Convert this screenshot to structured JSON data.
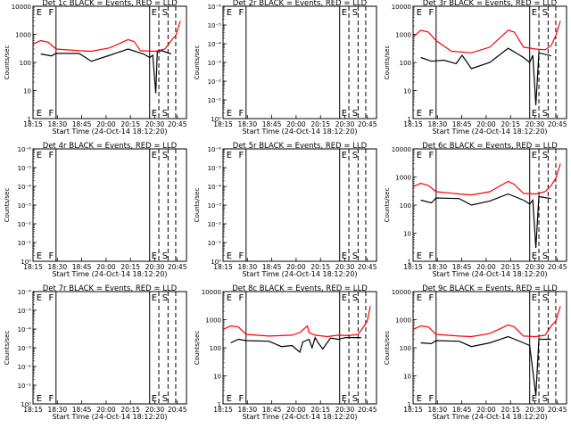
{
  "chart_data": [
    {
      "type": "line",
      "title": "Det 1c BLACK = Events, RED = LLD",
      "xlabel": "Start Time (24-Oct-14 18:12:20)",
      "ylabel": "Counts/sec",
      "x_ticks": [
        "18:15",
        "18:30",
        "18:45",
        "20:00",
        "20:15",
        "20:30",
        "20:45"
      ],
      "y_scale": "log",
      "y_ticks": [
        "1",
        "10",
        "100",
        "1000",
        "10000"
      ],
      "ylim": [
        1,
        10000
      ],
      "markers": [
        "E",
        "F",
        "E",
        "S"
      ],
      "series": [
        {
          "name": "Events",
          "color": "#000000",
          "points": [
            [
              0.05,
              200
            ],
            [
              0.12,
              170
            ],
            [
              0.15,
              210
            ],
            [
              0.3,
              210
            ],
            [
              0.38,
              110
            ],
            [
              0.5,
              180
            ],
            [
              0.62,
              300
            ],
            [
              0.72,
              200
            ],
            [
              0.76,
              150
            ],
            [
              0.78,
              180
            ],
            [
              0.8,
              8
            ],
            [
              0.81,
              250
            ],
            [
              0.84,
              260
            ],
            [
              0.9,
              200
            ]
          ]
        },
        {
          "name": "LLD",
          "color": "#ff0000",
          "points": [
            [
              0,
              450
            ],
            [
              0.05,
              600
            ],
            [
              0.1,
              520
            ],
            [
              0.15,
              300
            ],
            [
              0.3,
              260
            ],
            [
              0.38,
              250
            ],
            [
              0.5,
              330
            ],
            [
              0.62,
              650
            ],
            [
              0.66,
              550
            ],
            [
              0.7,
              260
            ],
            [
              0.8,
              250
            ],
            [
              0.86,
              300
            ],
            [
              0.9,
              600
            ],
            [
              0.93,
              900
            ],
            [
              0.96,
              3000
            ]
          ]
        }
      ]
    },
    {
      "type": "line",
      "title": "Det 2r BLACK = Events, RED = LLD",
      "xlabel": "Start Time (24-Oct-14 18:12:20)",
      "ylabel": "Counts/sec",
      "x_ticks": [
        "18:15",
        "18:30",
        "18:45",
        "20:00",
        "20:15",
        "20:30",
        "20:45"
      ],
      "y_scale": "log",
      "y_ticks": [
        "10⁰",
        "10⁻¹",
        "10⁻²",
        "10⁻³",
        "10⁻⁴",
        "10⁻⁵",
        "10⁻⁶"
      ],
      "markers": [
        "E",
        "F",
        "E",
        "S"
      ],
      "series": []
    },
    {
      "type": "line",
      "title": "Det 3r BLACK = Events, RED = LLD",
      "xlabel": "Start Time (24-Oct-14 18:12:20)",
      "ylabel": "Counts/sec",
      "x_ticks": [
        "18:15",
        "18:30",
        "18:45",
        "20:00",
        "20:15",
        "20:30",
        "20:45"
      ],
      "y_scale": "log",
      "y_ticks": [
        "1",
        "10",
        "100",
        "1000",
        "10000"
      ],
      "ylim": [
        1,
        10000
      ],
      "markers": [
        "E",
        "F",
        "E",
        "S"
      ],
      "series": [
        {
          "name": "Events",
          "color": "#000000",
          "points": [
            [
              0.05,
              150
            ],
            [
              0.12,
              110
            ],
            [
              0.2,
              120
            ],
            [
              0.28,
              90
            ],
            [
              0.32,
              180
            ],
            [
              0.38,
              60
            ],
            [
              0.5,
              100
            ],
            [
              0.62,
              320
            ],
            [
              0.72,
              150
            ],
            [
              0.76,
              100
            ],
            [
              0.78,
              180
            ],
            [
              0.8,
              3
            ],
            [
              0.82,
              220
            ],
            [
              0.9,
              170
            ]
          ]
        },
        {
          "name": "LLD",
          "color": "#ff0000",
          "points": [
            [
              0,
              800
            ],
            [
              0.05,
              1400
            ],
            [
              0.1,
              1200
            ],
            [
              0.15,
              600
            ],
            [
              0.25,
              250
            ],
            [
              0.38,
              220
            ],
            [
              0.5,
              350
            ],
            [
              0.62,
              1400
            ],
            [
              0.66,
              1200
            ],
            [
              0.72,
              350
            ],
            [
              0.8,
              300
            ],
            [
              0.86,
              280
            ],
            [
              0.9,
              400
            ],
            [
              0.93,
              900
            ],
            [
              0.96,
              3000
            ]
          ]
        }
      ]
    },
    {
      "type": "line",
      "title": "Det 4r BLACK = Events, RED = LLD",
      "xlabel": "Start Time (24-Oct-14 18:12:20)",
      "ylabel": "Counts/sec",
      "x_ticks": [
        "18:15",
        "18:30",
        "18:45",
        "20:00",
        "20:15",
        "20:30",
        "20:45"
      ],
      "y_scale": "log",
      "y_ticks": [
        "10⁰",
        "10⁻¹",
        "10⁻²",
        "10⁻³",
        "10⁻⁴",
        "10⁻⁵",
        "10⁻⁶"
      ],
      "markers": [
        "E",
        "F",
        "E",
        "S"
      ],
      "series": []
    },
    {
      "type": "line",
      "title": "Det 5r BLACK = Events, RED = LLD",
      "xlabel": "Start Time (24-Oct-14 18:12:20)",
      "ylabel": "Counts/sec",
      "x_ticks": [
        "18:15",
        "18:30",
        "18:45",
        "20:00",
        "20:15",
        "20:30",
        "20:45"
      ],
      "y_scale": "log",
      "y_ticks": [
        "10⁰",
        "10⁻¹",
        "10⁻²",
        "10⁻³",
        "10⁻⁴",
        "10⁻⁵",
        "10⁻⁶"
      ],
      "markers": [
        "E",
        "F",
        "E",
        "S"
      ],
      "series": []
    },
    {
      "type": "line",
      "title": "Det 6c BLACK = Events, RED = LLD",
      "xlabel": "Start Time (24-Oct-14 18:12:20)",
      "ylabel": "Counts/sec",
      "x_ticks": [
        "18:15",
        "18:30",
        "18:45",
        "20:00",
        "20:15",
        "20:30",
        "20:45"
      ],
      "y_scale": "log",
      "y_ticks": [
        "1",
        "10",
        "100",
        "1000",
        "10000"
      ],
      "ylim": [
        1,
        10000
      ],
      "markers": [
        "E",
        "F",
        "E",
        "S"
      ],
      "series": [
        {
          "name": "Events",
          "color": "#000000",
          "points": [
            [
              0.05,
              150
            ],
            [
              0.12,
              120
            ],
            [
              0.15,
              180
            ],
            [
              0.3,
              170
            ],
            [
              0.38,
              100
            ],
            [
              0.5,
              140
            ],
            [
              0.62,
              250
            ],
            [
              0.72,
              150
            ],
            [
              0.76,
              110
            ],
            [
              0.78,
              150
            ],
            [
              0.8,
              3
            ],
            [
              0.82,
              200
            ],
            [
              0.9,
              170
            ]
          ]
        },
        {
          "name": "LLD",
          "color": "#ff0000",
          "points": [
            [
              0,
              450
            ],
            [
              0.05,
              600
            ],
            [
              0.1,
              500
            ],
            [
              0.15,
              300
            ],
            [
              0.3,
              250
            ],
            [
              0.38,
              230
            ],
            [
              0.5,
              300
            ],
            [
              0.62,
              700
            ],
            [
              0.66,
              550
            ],
            [
              0.72,
              260
            ],
            [
              0.8,
              250
            ],
            [
              0.86,
              300
            ],
            [
              0.9,
              500
            ],
            [
              0.93,
              900
            ],
            [
              0.96,
              3000
            ]
          ]
        }
      ]
    },
    {
      "type": "line",
      "title": "Det 7r BLACK = Events, RED = LLD",
      "xlabel": "Start Time (24-Oct-14 18:12:20)",
      "ylabel": "Counts/sec",
      "x_ticks": [
        "18:15",
        "18:30",
        "18:45",
        "20:00",
        "20:15",
        "20:30",
        "20:45"
      ],
      "y_scale": "log",
      "y_ticks": [
        "10⁰",
        "10⁻¹",
        "10⁻²",
        "10⁻³",
        "10⁻⁴",
        "10⁻⁵",
        "10⁻⁶"
      ],
      "markers": [
        "E",
        "F",
        "E",
        "S"
      ],
      "series": []
    },
    {
      "type": "line",
      "title": "Det 8c BLACK = Events, RED = LLD",
      "xlabel": "Start Time (24-Oct-14 18:12:20)",
      "ylabel": "Counts/sec",
      "x_ticks": [
        "18:15",
        "18:30",
        "18:45",
        "20:00",
        "20:15",
        "20:30",
        "20:45"
      ],
      "y_scale": "log",
      "y_ticks": [
        "1",
        "10",
        "100",
        "1000",
        "10000"
      ],
      "ylim": [
        1,
        10000
      ],
      "markers": [
        "E",
        "F",
        "E",
        "S"
      ],
      "series": [
        {
          "name": "Events",
          "color": "#000000",
          "points": [
            [
              0.05,
              150
            ],
            [
              0.1,
              200
            ],
            [
              0.15,
              180
            ],
            [
              0.3,
              170
            ],
            [
              0.38,
              110
            ],
            [
              0.45,
              120
            ],
            [
              0.5,
              70
            ],
            [
              0.52,
              160
            ],
            [
              0.56,
              200
            ],
            [
              0.58,
              100
            ],
            [
              0.6,
              230
            ],
            [
              0.62,
              150
            ],
            [
              0.65,
              90
            ],
            [
              0.7,
              220
            ],
            [
              0.75,
              200
            ],
            [
              0.8,
              230
            ],
            [
              0.86,
              230
            ],
            [
              0.9,
              230
            ]
          ]
        },
        {
          "name": "LLD",
          "color": "#ff0000",
          "points": [
            [
              0,
              450
            ],
            [
              0.05,
              600
            ],
            [
              0.1,
              550
            ],
            [
              0.15,
              300
            ],
            [
              0.3,
              260
            ],
            [
              0.45,
              280
            ],
            [
              0.5,
              350
            ],
            [
              0.55,
              600
            ],
            [
              0.56,
              350
            ],
            [
              0.6,
              280
            ],
            [
              0.68,
              250
            ],
            [
              0.75,
              280
            ],
            [
              0.82,
              270
            ],
            [
              0.88,
              300
            ],
            [
              0.92,
              600
            ],
            [
              0.94,
              900
            ],
            [
              0.96,
              3000
            ]
          ]
        }
      ]
    },
    {
      "type": "line",
      "title": "Det 9c BLACK = Events, RED = LLD",
      "xlabel": "Start Time (24-Oct-14 18:12:20)",
      "ylabel": "Counts/sec",
      "x_ticks": [
        "18:15",
        "18:30",
        "18:45",
        "20:00",
        "20:15",
        "20:30",
        "20:45"
      ],
      "y_scale": "log",
      "y_ticks": [
        "1",
        "10",
        "100",
        "1000",
        "10000"
      ],
      "ylim": [
        1,
        10000
      ],
      "markers": [
        "E",
        "F",
        "E",
        "S"
      ],
      "series": [
        {
          "name": "Events",
          "color": "#000000",
          "points": [
            [
              0.05,
              150
            ],
            [
              0.12,
              140
            ],
            [
              0.15,
              180
            ],
            [
              0.3,
              170
            ],
            [
              0.38,
              110
            ],
            [
              0.5,
              150
            ],
            [
              0.62,
              250
            ],
            [
              0.72,
              150
            ],
            [
              0.76,
              120
            ],
            [
              0.8,
              2
            ],
            [
              0.82,
              200
            ],
            [
              0.9,
              200
            ]
          ]
        },
        {
          "name": "LLD",
          "color": "#ff0000",
          "points": [
            [
              0,
              450
            ],
            [
              0.05,
              600
            ],
            [
              0.1,
              550
            ],
            [
              0.15,
              300
            ],
            [
              0.3,
              260
            ],
            [
              0.38,
              250
            ],
            [
              0.5,
              320
            ],
            [
              0.62,
              650
            ],
            [
              0.66,
              550
            ],
            [
              0.72,
              260
            ],
            [
              0.8,
              250
            ],
            [
              0.86,
              280
            ],
            [
              0.9,
              600
            ],
            [
              0.93,
              900
            ],
            [
              0.96,
              3000
            ]
          ]
        }
      ]
    }
  ]
}
